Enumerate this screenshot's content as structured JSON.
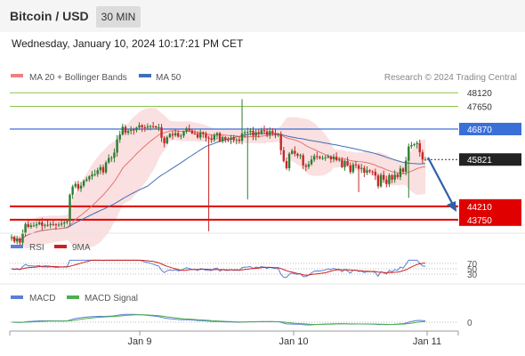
{
  "header": {
    "title": "Bitcoin / USD",
    "timeframe": "30 MIN"
  },
  "datetime": "Wednesday, January 10, 2024 10:17:21 PM CET",
  "legend": {
    "ma20_label": "MA 20 + Bollinger Bands",
    "ma50_label": "MA 50",
    "credit": "Research © 2024 Trading Central"
  },
  "colors": {
    "bull": "#2e7d32",
    "bear": "#c62828",
    "ma20": "#e57373",
    "ma50": "#3f6fb5",
    "band": "#f8d0d0",
    "support": "#e00000",
    "resistance": "#3a6fd8",
    "target": "#8bc34a",
    "rsi": "#5b7fd6",
    "rsi_ma": "#d02020",
    "macd": "#5b7fd6",
    "macd_signal": "#4caf50"
  },
  "chart_data": [
    {
      "type": "candlestick",
      "x_ticks": [
        "Jan 9",
        "Jan 10",
        "Jan 11"
      ],
      "ylim": [
        42500,
        49000
      ],
      "series": [
        {
          "name": "Bitcoin / USD",
          "open": [
            43120,
            43150,
            43000,
            43100,
            42960,
            43300,
            43600,
            43500,
            43550,
            43550,
            43590,
            43660,
            43540,
            43570,
            43560,
            43600,
            43590,
            43560,
            43580,
            43620,
            43660,
            43700,
            44610,
            44890,
            44980,
            44820,
            44920,
            45090,
            45140,
            45240,
            45310,
            45320,
            45450,
            45560,
            45380,
            45720,
            45870,
            45880,
            46060,
            46510,
            46680,
            46950,
            46740,
            46810,
            46850,
            46830,
            46920,
            47000,
            46930,
            46920,
            46960,
            46970,
            46960,
            46920,
            46930,
            46570,
            46380,
            46590,
            46700,
            46650,
            46730,
            46610,
            46640,
            46780,
            46890,
            46820,
            46720,
            46710,
            46580,
            46760,
            46700,
            46570,
            46550,
            46500,
            46660,
            46730,
            46450,
            46590,
            46510,
            46500,
            46570,
            46490,
            46510,
            46460,
            46720,
            46750,
            46770,
            46810,
            46640,
            46760,
            46710,
            46830,
            46790,
            46670,
            46800,
            46730,
            46680,
            46700,
            46140,
            45770,
            45520,
            46020,
            46120,
            46020,
            45950,
            45970,
            45620,
            45570,
            45660,
            45820,
            45940,
            45920,
            45870,
            45870,
            45890,
            45930,
            45830,
            45920,
            45800,
            45820,
            45560,
            45770,
            45620,
            45390,
            45650,
            45620,
            45500,
            45530,
            45370,
            45450,
            45410,
            45400,
            45270,
            44900,
            45290,
            45130,
            44980,
            45280,
            45130,
            45300,
            45220,
            45510,
            45400,
            45780,
            46270,
            46320,
            46350,
            46380,
            46070,
            45820
          ]
        }
      ],
      "reference_levels": {
        "resistance": [
          48120,
          47650,
          46870
        ],
        "pivot": 45821,
        "support": [
          44210,
          43750
        ]
      },
      "title": "Bitcoin / USD"
    },
    {
      "type": "line",
      "y_ticks": [
        70,
        50,
        30
      ],
      "series": [
        {
          "name": "RSI"
        },
        {
          "name": "9MA"
        }
      ]
    },
    {
      "type": "line",
      "y_ticks": [
        0
      ],
      "series": [
        {
          "name": "MACD"
        },
        {
          "name": "MACD Signal"
        }
      ]
    }
  ]
}
